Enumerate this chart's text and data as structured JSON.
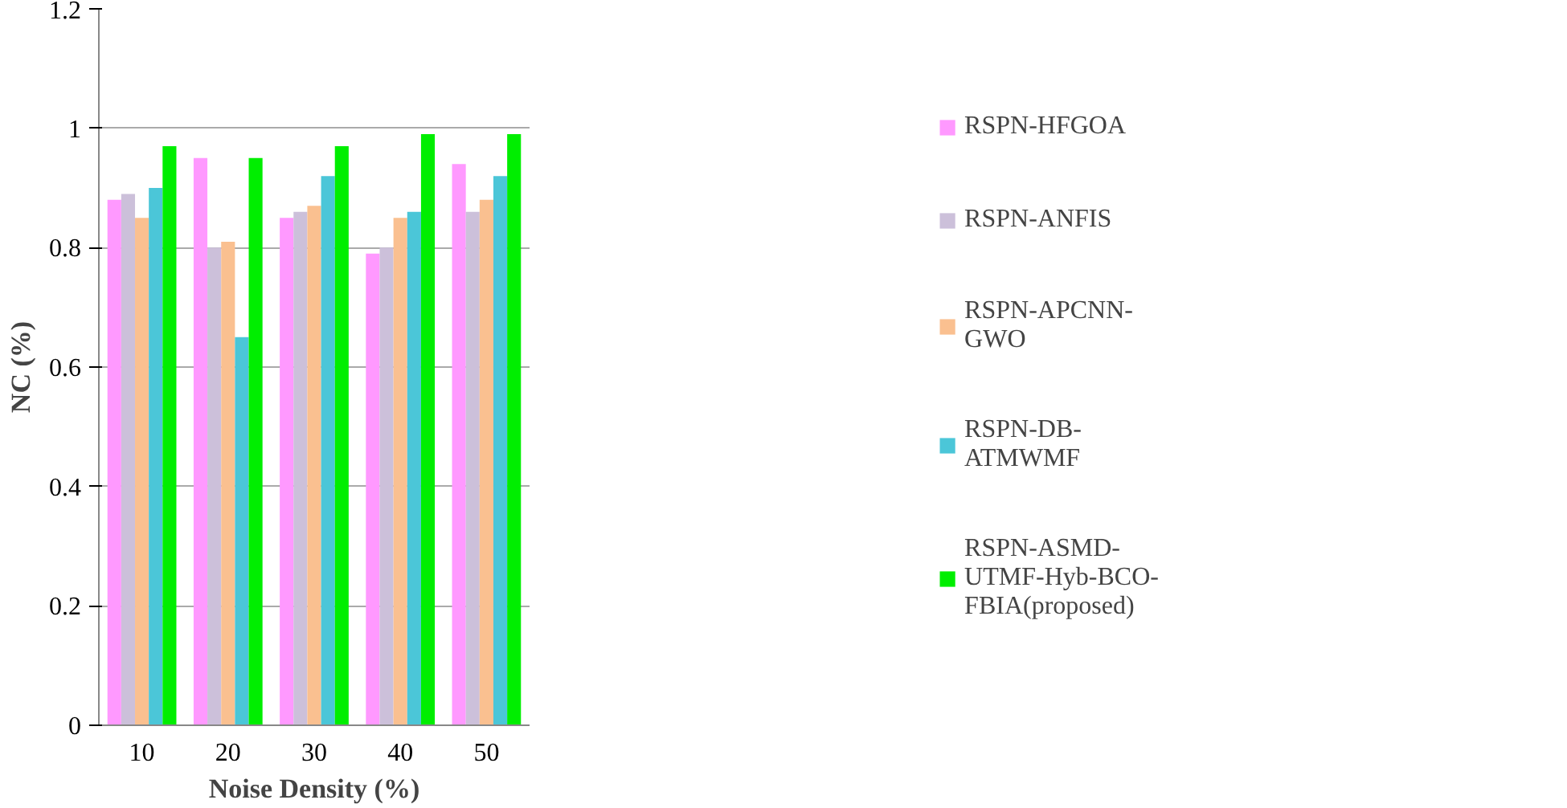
{
  "chart_data": {
    "type": "bar",
    "xlabel": "Noise Density (%)",
    "ylabel": "NC (%)",
    "categories": [
      "10",
      "20",
      "30",
      "40",
      "50"
    ],
    "series": [
      {
        "name": "RSPN-HFGOA",
        "color": "#ff99ff",
        "values": [
          0.88,
          0.95,
          0.85,
          0.79,
          0.94
        ]
      },
      {
        "name": "RSPN-ANFIS",
        "color": "#ccc0da",
        "values": [
          0.89,
          0.8,
          0.86,
          0.8,
          0.86
        ]
      },
      {
        "name": "RSPN-APCNN-GWO",
        "color": "#fac090",
        "values": [
          0.85,
          0.81,
          0.87,
          0.85,
          0.88
        ]
      },
      {
        "name": "RSPN-DB-ATMWMF",
        "color": "#4bc6d8",
        "values": [
          0.9,
          0.65,
          0.92,
          0.86,
          0.92
        ]
      },
      {
        "name": "RSPN-ASMD-UTMF-Hyb-BCO-FBIA(proposed)",
        "color": "#00ee00",
        "values": [
          0.97,
          0.95,
          0.97,
          0.99,
          0.99
        ]
      }
    ],
    "ylim": [
      0,
      1.2
    ],
    "yticks": [
      0,
      0.2,
      0.4,
      0.6,
      0.8,
      1,
      1.2
    ],
    "grid": "y",
    "legend": "right"
  }
}
